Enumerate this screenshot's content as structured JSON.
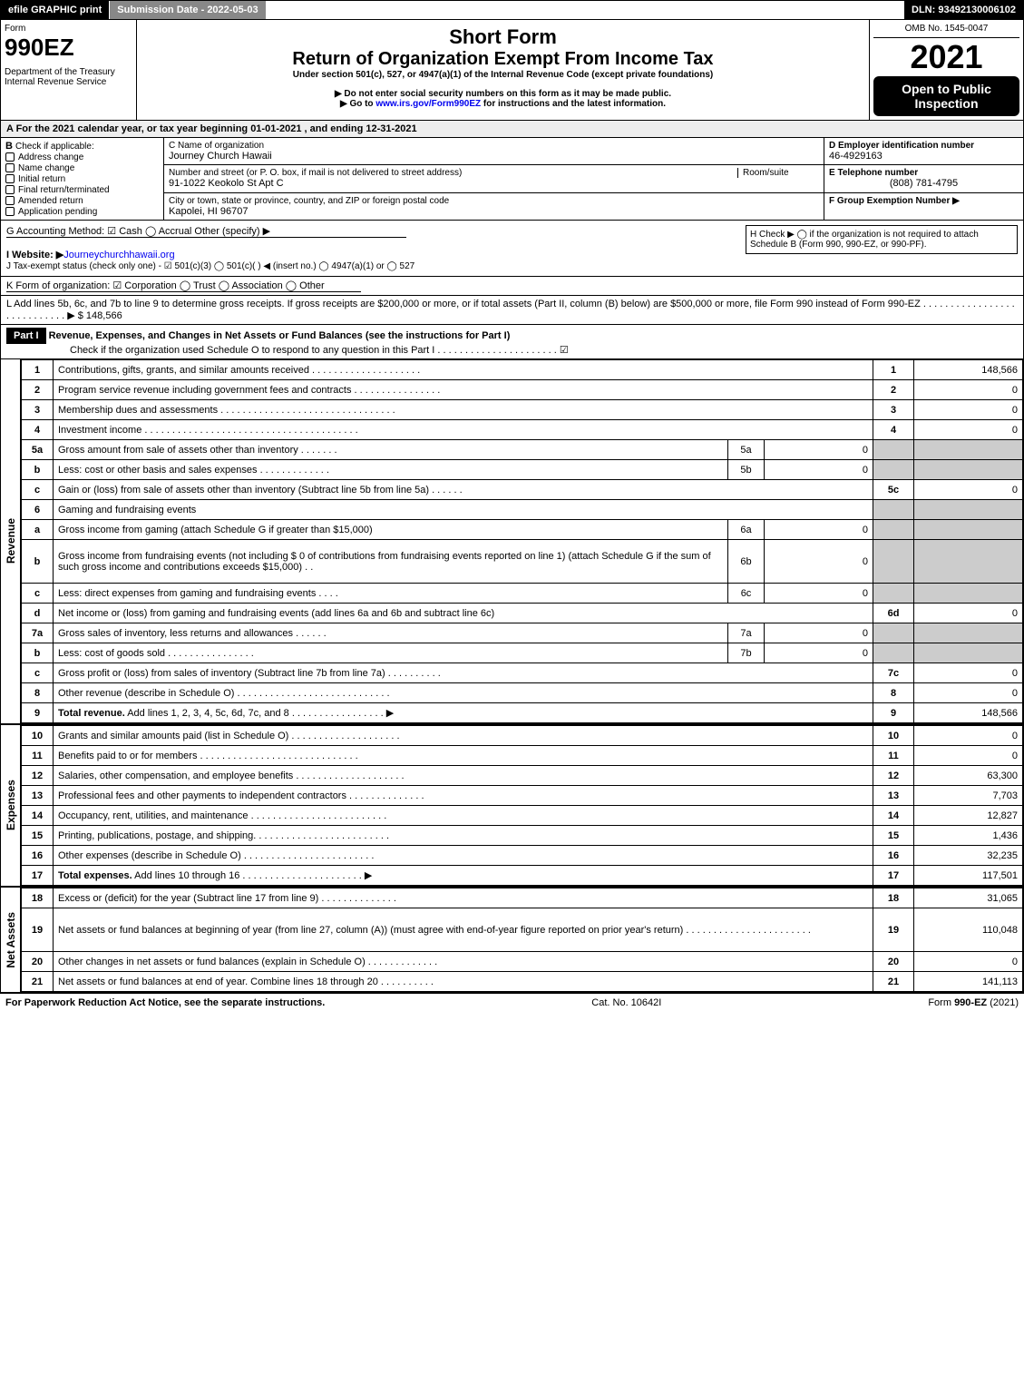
{
  "topbar": {
    "efile": "efile GRAPHIC print",
    "subdate": "Submission Date - 2022-05-03",
    "dln": "DLN: 93492130006102"
  },
  "head": {
    "form": "Form",
    "form990": "990EZ",
    "dept": "Department of the Treasury\nInternal Revenue Service",
    "short": "Short Form",
    "return": "Return of Organization Exempt From Income Tax",
    "under": "Under section 501(c), 527, or 4947(a)(1) of the Internal Revenue Code (except private foundations)",
    "donot": "▶ Do not enter social security numbers on this form as it may be made public.",
    "goto": "▶ Go to www.irs.gov/Form990EZ for instructions and the latest information.",
    "omb": "OMB No. 1545-0047",
    "year": "2021",
    "open": "Open to Public Inspection"
  },
  "A": "A  For the 2021 calendar year, or tax year beginning 01-01-2021 , and ending 12-31-2021",
  "B": {
    "label": "B",
    "title": "Check if applicable:",
    "items": [
      "Address change",
      "Name change",
      "Initial return",
      "Final return/terminated",
      "Amended return",
      "Application pending"
    ]
  },
  "C": {
    "nameLbl": "C Name of organization",
    "name": "Journey Church Hawaii",
    "streetLbl": "Number and street (or P. O. box, if mail is not delivered to street address)",
    "roomLbl": "Room/suite",
    "street": "91-1022 Keokolo St Apt C",
    "cityLbl": "City or town, state or province, country, and ZIP or foreign postal code",
    "city": "Kapolei, HI  96707"
  },
  "D": {
    "lbl": "D Employer identification number",
    "val": "46-4929163"
  },
  "E": {
    "lbl": "E Telephone number",
    "val": "(808) 781-4795"
  },
  "F": {
    "lbl": "F Group Exemption Number  ▶"
  },
  "G": "G Accounting Method:  ☑ Cash  ◯ Accrual  Other (specify) ▶",
  "H": "H  Check ▶  ◯  if the organization is not required to attach Schedule B (Form 990, 990-EZ, or 990-PF).",
  "I": {
    "lbl": "I Website: ▶",
    "val": "Journeychurchhawaii.org"
  },
  "J": "J Tax-exempt status (check only one) -  ☑ 501(c)(3) ◯ 501(c)( )  ◀ (insert no.) ◯ 4947(a)(1) or ◯ 527",
  "K": "K Form of organization:  ☑ Corporation  ◯ Trust  ◯ Association  ◯ Other",
  "L": {
    "text": "L Add lines 5b, 6c, and 7b to line 9 to determine gross receipts. If gross receipts are $200,000 or more, or if total assets (Part II, column (B) below) are $500,000 or more, file Form 990 instead of Form 990-EZ . . . . . . . . . . . . . . . . . . . . . . . . . . . .  ▶ $ 148,566"
  },
  "partI": {
    "bar": "Part I",
    "title": "Revenue, Expenses, and Changes in Net Assets or Fund Balances (see the instructions for Part I)",
    "check": "Check if the organization used Schedule O to respond to any question in this Part I . . . . . . . . . . . . . . . . . . . . . .  ☑"
  },
  "sections": {
    "revenue": "Revenue",
    "expenses": "Expenses",
    "netassets": "Net Assets"
  },
  "rows": [
    {
      "n": "1",
      "t": "Contributions, gifts, grants, and similar amounts received . . . . . . . . . . . . . . . . . . . .",
      "c": "1",
      "a": "148,566"
    },
    {
      "n": "2",
      "t": "Program service revenue including government fees and contracts . . . . . . . . . . . . . . . .",
      "c": "2",
      "a": "0"
    },
    {
      "n": "3",
      "t": "Membership dues and assessments . . . . . . . . . . . . . . . . . . . . . . . . . . . . . . . .",
      "c": "3",
      "a": "0"
    },
    {
      "n": "4",
      "t": "Investment income . . . . . . . . . . . . . . . . . . . . . . . . . . . . . . . . . . . . . . .",
      "c": "4",
      "a": "0"
    },
    {
      "n": "5a",
      "t": "Gross amount from sale of assets other than inventory . . . . . . .",
      "sub": "5a",
      "samt": "0",
      "shade": true
    },
    {
      "n": "b",
      "t": "Less: cost or other basis and sales expenses . . . . . . . . . . . . .",
      "sub": "5b",
      "samt": "0",
      "shade": true
    },
    {
      "n": "c",
      "t": "Gain or (loss) from sale of assets other than inventory (Subtract line 5b from line 5a) . . . . . .",
      "c": "5c",
      "a": "0"
    },
    {
      "n": "6",
      "t": "Gaming and fundraising events",
      "shade": true,
      "noamt": true
    },
    {
      "n": "a",
      "t": "Gross income from gaming (attach Schedule G if greater than $15,000)",
      "sub": "6a",
      "samt": "0",
      "shade": true
    },
    {
      "n": "b",
      "t": "Gross income from fundraising events (not including $  0                       of contributions from fundraising events reported on line 1) (attach Schedule G if the sum of such gross income and contributions exceeds $15,000)  . .",
      "sub": "6b",
      "samt": "0",
      "shade": true,
      "tall": true
    },
    {
      "n": "c",
      "t": "Less: direct expenses from gaming and fundraising events  . . . .",
      "sub": "6c",
      "samt": "0",
      "shade": true
    },
    {
      "n": "d",
      "t": "Net income or (loss) from gaming and fundraising events (add lines 6a and 6b and subtract line 6c)",
      "c": "6d",
      "a": "0"
    },
    {
      "n": "7a",
      "t": "Gross sales of inventory, less returns and allowances . . . . . .",
      "sub": "7a",
      "samt": "0",
      "shade": true
    },
    {
      "n": "b",
      "t": "Less: cost of goods sold                . . . . . . . . . . . . . . . .",
      "sub": "7b",
      "samt": "0",
      "shade": true
    },
    {
      "n": "c",
      "t": "Gross profit or (loss) from sales of inventory (Subtract line 7b from line 7a) . . . . . . . . . .",
      "c": "7c",
      "a": "0"
    },
    {
      "n": "8",
      "t": "Other revenue (describe in Schedule O) . . . . . . . . . . . . . . . . . . . . . . . . . . . .",
      "c": "8",
      "a": "0"
    },
    {
      "n": "9",
      "t": "Total revenue. Add lines 1, 2, 3, 4, 5c, 6d, 7c, and 8  . . . . . . . . . . . . . . . . .  ▶",
      "c": "9",
      "a": "148,566",
      "bold": true
    }
  ],
  "exp": [
    {
      "n": "10",
      "t": "Grants and similar amounts paid (list in Schedule O) . . . . . . . . . . . . . . . . . . . .",
      "c": "10",
      "a": "0"
    },
    {
      "n": "11",
      "t": "Benefits paid to or for members       . . . . . . . . . . . . . . . . . . . . . . . . . . . . .",
      "c": "11",
      "a": "0"
    },
    {
      "n": "12",
      "t": "Salaries, other compensation, and employee benefits . . . . . . . . . . . . . . . . . . . .",
      "c": "12",
      "a": "63,300"
    },
    {
      "n": "13",
      "t": "Professional fees and other payments to independent contractors . . . . . . . . . . . . . .",
      "c": "13",
      "a": "7,703"
    },
    {
      "n": "14",
      "t": "Occupancy, rent, utilities, and maintenance . . . . . . . . . . . . . . . . . . . . . . . . .",
      "c": "14",
      "a": "12,827"
    },
    {
      "n": "15",
      "t": "Printing, publications, postage, and shipping. . . . . . . . . . . . . . . . . . . . . . . . .",
      "c": "15",
      "a": "1,436"
    },
    {
      "n": "16",
      "t": "Other expenses (describe in Schedule O)       . . . . . . . . . . . . . . . . . . . . . . . .",
      "c": "16",
      "a": "32,235"
    },
    {
      "n": "17",
      "t": "Total expenses. Add lines 10 through 16      . . . . . . . . . . . . . . . . . . . . . .  ▶",
      "c": "17",
      "a": "117,501",
      "bold": true
    }
  ],
  "net": [
    {
      "n": "18",
      "t": "Excess or (deficit) for the year (Subtract line 17 from line 9)       . . . . . . . . . . . . . .",
      "c": "18",
      "a": "31,065"
    },
    {
      "n": "19",
      "t": "Net assets or fund balances at beginning of year (from line 27, column (A)) (must agree with end-of-year figure reported on prior year's return) . . . . . . . . . . . . . . . . . . . . . . .",
      "c": "19",
      "a": "110,048",
      "tall": true
    },
    {
      "n": "20",
      "t": "Other changes in net assets or fund balances (explain in Schedule O) . . . . . . . . . . . . .",
      "c": "20",
      "a": "0"
    },
    {
      "n": "21",
      "t": "Net assets or fund balances at end of year. Combine lines 18 through 20 . . . . . . . . . .",
      "c": "21",
      "a": "141,113"
    }
  ],
  "footer": {
    "left": "For Paperwork Reduction Act Notice, see the separate instructions.",
    "mid": "Cat. No. 10642I",
    "right": "Form 990-EZ (2021)"
  }
}
